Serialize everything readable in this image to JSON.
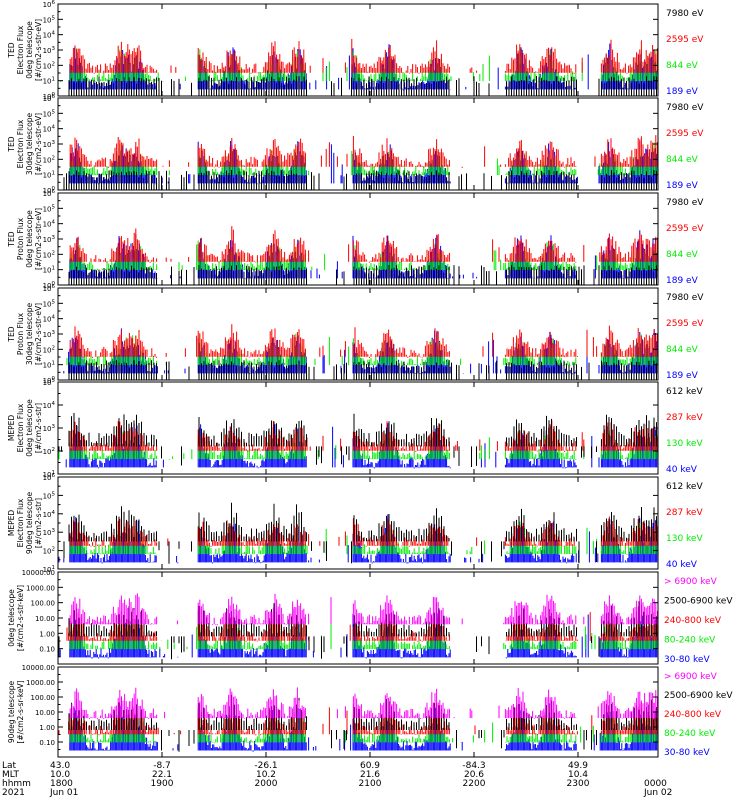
{
  "colors": {
    "blue": "#0000ff",
    "red": "#ff0000",
    "green": "#00ee00",
    "black": "#000000",
    "magenta": "#ff00ff"
  },
  "chart_data": [
    {
      "type": "line",
      "ylabel": [
        "TED",
        "Electron Flux",
        "0deg telescope",
        "[#/cm2-s-str-eV]"
      ],
      "log": true,
      "ylim_exp": [
        0,
        6
      ],
      "yticks": [
        "10^0",
        "10^1",
        "10^2",
        "10^3",
        "10^4",
        "10^5",
        "10^6"
      ],
      "series": [
        {
          "name": "7980 eV",
          "color": "#000000"
        },
        {
          "name": "2595 eV",
          "color": "#ff0000"
        },
        {
          "name": "844 eV",
          "color": "#00ee00"
        },
        {
          "name": "189 eV",
          "color": "#0000ff"
        }
      ]
    },
    {
      "type": "line",
      "ylabel": [
        "TED",
        "Electron Flux",
        "30deg telescope",
        "[#/cm2-s-str-eV]"
      ],
      "log": true,
      "ylim_exp": [
        0,
        6
      ],
      "yticks": [
        "10^0",
        "10^1",
        "10^2",
        "10^3",
        "10^4",
        "10^5",
        "10^6"
      ],
      "series": [
        {
          "name": "7980 eV",
          "color": "#000000"
        },
        {
          "name": "2595 eV",
          "color": "#ff0000"
        },
        {
          "name": "844 eV",
          "color": "#00ee00"
        },
        {
          "name": "189 eV",
          "color": "#0000ff"
        }
      ]
    },
    {
      "type": "line",
      "ylabel": [
        "TED",
        "Proton Flux",
        "0deg telescope",
        "[#/cm2-s-str-eV]"
      ],
      "log": true,
      "ylim_exp": [
        0,
        6
      ],
      "yticks": [
        "10^0",
        "10^1",
        "10^2",
        "10^3",
        "10^4",
        "10^5",
        "10^6"
      ],
      "series": [
        {
          "name": "7980 eV",
          "color": "#000000"
        },
        {
          "name": "2595 eV",
          "color": "#ff0000"
        },
        {
          "name": "844 eV",
          "color": "#00ee00"
        },
        {
          "name": "189 eV",
          "color": "#0000ff"
        }
      ]
    },
    {
      "type": "line",
      "ylabel": [
        "TED",
        "Proton Flux",
        "30deg telescope",
        "[#/cm2-s-str-eV]"
      ],
      "log": true,
      "ylim_exp": [
        0,
        6
      ],
      "yticks": [
        "10^0",
        "10^1",
        "10^2",
        "10^3",
        "10^4",
        "10^5",
        "10^6"
      ],
      "series": [
        {
          "name": "7980 eV",
          "color": "#000000"
        },
        {
          "name": "2595 eV",
          "color": "#ff0000"
        },
        {
          "name": "844 eV",
          "color": "#00ee00"
        },
        {
          "name": "189 eV",
          "color": "#0000ff"
        }
      ]
    },
    {
      "type": "line",
      "ylabel": [
        "MEPED",
        "Electron Flux",
        "0deg telescope",
        "[#/cm2-s-str]"
      ],
      "log": true,
      "ylim_exp": [
        1,
        5
      ],
      "yticks": [
        "10^1",
        "10^2",
        "10^3",
        "10^4",
        "10^5"
      ],
      "series": [
        {
          "name": "612 keV",
          "color": "#000000"
        },
        {
          "name": "287 keV",
          "color": "#ff0000"
        },
        {
          "name": "130 keV",
          "color": "#00ee00"
        },
        {
          "name": "40 keV",
          "color": "#0000ff"
        }
      ]
    },
    {
      "type": "line",
      "ylabel": [
        "MEPED",
        "Electron Flux",
        "90deg telescope",
        "[#/cm2-s-str]"
      ],
      "log": true,
      "ylim_exp": [
        1,
        6
      ],
      "yticks": [
        "10^1",
        "10^2",
        "10^3",
        "10^4",
        "10^5",
        "10^6"
      ],
      "series": [
        {
          "name": "612 keV",
          "color": "#000000"
        },
        {
          "name": "287 keV",
          "color": "#ff0000"
        },
        {
          "name": "130 keV",
          "color": "#00ee00"
        },
        {
          "name": "40 keV",
          "color": "#0000ff"
        }
      ]
    },
    {
      "type": "line",
      "ylabel": [
        "0deg telescope",
        "[#/cm2-s-str-keV]"
      ],
      "log": true,
      "ylim_exp": [
        -2,
        4
      ],
      "yticks": [
        "",
        "0.10",
        "1.00",
        "10.00",
        "100.00",
        "1000.00",
        "10000.00"
      ],
      "series": [
        {
          "name": "> 6900 keV",
          "color": "#ff00ff"
        },
        {
          "name": "2500-6900 keV",
          "color": "#000000"
        },
        {
          "name": "240-800 keV",
          "color": "#ff0000"
        },
        {
          "name": "80-240 keV",
          "color": "#00ee00"
        },
        {
          "name": "30-80 keV",
          "color": "#0000ff"
        }
      ]
    },
    {
      "type": "line",
      "ylabel": [
        "90deg telescope",
        "[#/cm2-s-sr-keV]"
      ],
      "log": true,
      "ylim_exp": [
        -2,
        4
      ],
      "yticks": [
        "",
        "0.10",
        "1.00",
        "10.00",
        "100.00",
        "1000.00",
        "10000.00"
      ],
      "series": [
        {
          "name": "> 6900 keV",
          "color": "#ff00ff"
        },
        {
          "name": "2500-6900 keV",
          "color": "#000000"
        },
        {
          "name": "240-800 keV",
          "color": "#ff0000"
        },
        {
          "name": "80-240 keV",
          "color": "#00ee00"
        },
        {
          "name": "30-80 keV",
          "color": "#0000ff"
        }
      ]
    }
  ],
  "xaxis": {
    "row_labels": [
      "Lat",
      "MLT",
      "hhmm",
      "2021"
    ],
    "ticks": [
      {
        "lat": "43.0",
        "mlt": "10.0",
        "hhmm": "1800",
        "date": "Jun 01"
      },
      {
        "lat": "-8.7",
        "mlt": "22.1",
        "hhmm": "1900",
        "date": ""
      },
      {
        "lat": "-26.1",
        "mlt": "10.2",
        "hhmm": "2000",
        "date": ""
      },
      {
        "lat": "60.9",
        "mlt": "21.6",
        "hhmm": "2100",
        "date": ""
      },
      {
        "lat": "-84.3",
        "mlt": "20.6",
        "hhmm": "2200",
        "date": ""
      },
      {
        "lat": "49.9",
        "mlt": "10.4",
        "hhmm": "2300",
        "date": ""
      },
      {
        "lat": "",
        "mlt": "",
        "hhmm": "0000",
        "date": "Jun 02"
      }
    ]
  }
}
